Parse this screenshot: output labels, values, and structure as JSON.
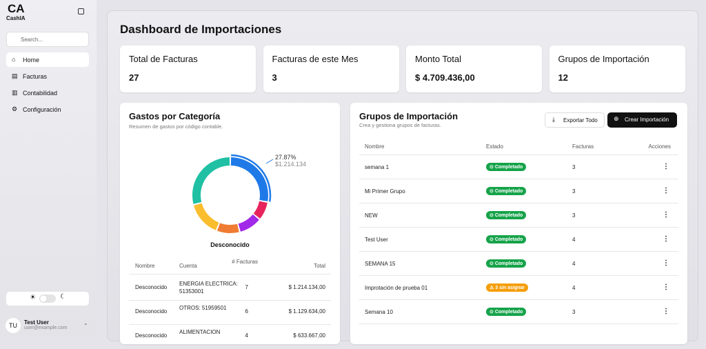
{
  "sidebar": {
    "logo": "CA",
    "brand": "CashIA",
    "search": "Search...",
    "nav": [
      "Home",
      "Facturas",
      "Contabilidad",
      "Configuración"
    ],
    "user": {
      "initials": "TU",
      "name": "Test User",
      "email": "user@example.com"
    }
  },
  "title": "Dashboard de Importaciones",
  "stats": [
    {
      "label": "Total de Facturas",
      "value": "27"
    },
    {
      "label": "Facturas de este Mes",
      "value": "3"
    },
    {
      "label": "Monto Total",
      "value": "$ 4.709.436,00"
    },
    {
      "label": "Grupos de Importación",
      "value": "12"
    }
  ],
  "gastos": {
    "title": "Gastos por Categoría",
    "subtitle": "Resumen de gastos por código contable.",
    "chart_data": {
      "type": "pie",
      "values": [
        27.87,
        8,
        10,
        10,
        15,
        29
      ],
      "value_labels": [
        "27.87%",
        null,
        null,
        null,
        null,
        null
      ],
      "colors": [
        "#1f7ae8",
        "#e8245c",
        "#a229e8",
        "#f07c33",
        "#f9bd2e",
        "#1fc0a3"
      ],
      "annotation": "$1.214.134",
      "legend": "Desconocido"
    },
    "table": {
      "headers": [
        "Nombre",
        "Cuenta",
        "# Facturas",
        "Total"
      ],
      "rows": [
        [
          "Desconocido",
          "ENERGIA ELECTRICA: 51353001",
          "7",
          "$ 1.214.134,00"
        ],
        [
          "Desconocido",
          "OTROS: 51959501",
          "6",
          "$ 1.129.634,00"
        ],
        [
          "Desconocido",
          "ALIMENTACION",
          "4",
          "$ 633.667,00"
        ]
      ]
    }
  },
  "grupos": {
    "title": "Grupos de Importación",
    "subtitle": "Crea y gestiona grupos de facturas.",
    "export": "Exportar Todo",
    "create": "Crear Importación",
    "table": {
      "headers": [
        "Nombre",
        "Estado",
        "Facturas",
        "Acciones"
      ],
      "rows": [
        [
          "semana 1",
          "Completado",
          "3"
        ],
        [
          "Mi Primer Grupo",
          "Completado",
          "3"
        ],
        [
          "NEW",
          "Completado",
          "3"
        ],
        [
          "Test User",
          "Completado",
          "4"
        ],
        [
          "SEMANA 15",
          "Completado",
          "4"
        ],
        [
          "Improtación de prueba 01",
          "3 sin asignar",
          "4"
        ],
        [
          "Semana 10",
          "Completado",
          "3"
        ]
      ]
    }
  }
}
